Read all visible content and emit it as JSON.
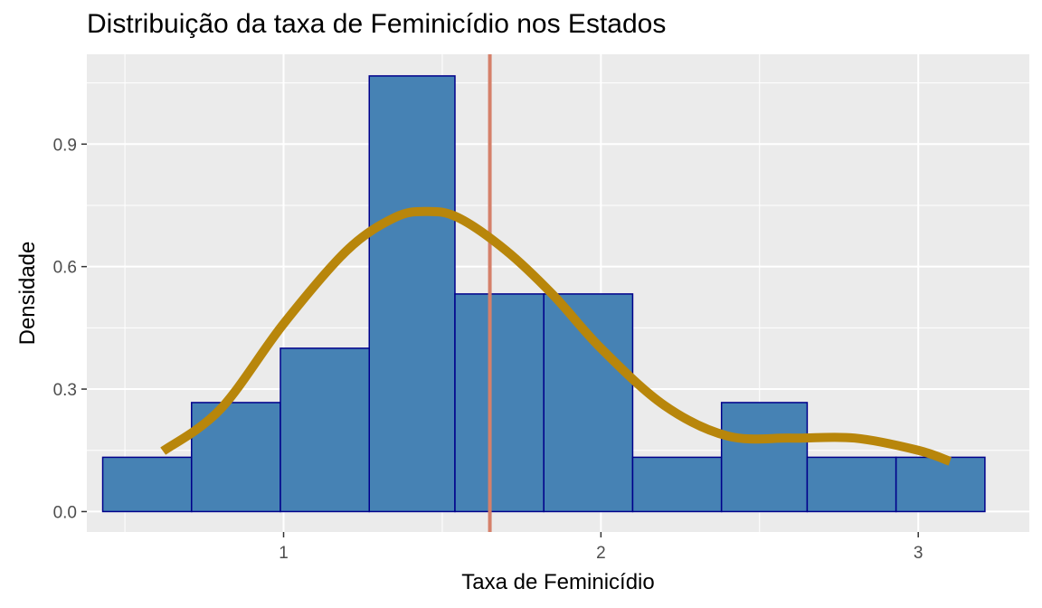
{
  "chart_data": {
    "type": "histogram",
    "title": "Distribuição da taxa de Feminicídio nos Estados",
    "xlabel": "Taxa de Feminicídio",
    "ylabel": "Densidade",
    "xlim": [
      0.38,
      3.35
    ],
    "ylim": [
      -0.05,
      1.12
    ],
    "x_ticks": [
      1,
      2,
      3
    ],
    "y_ticks": [
      0.0,
      0.3,
      0.6,
      0.9
    ],
    "y_tick_labels": [
      "0.0",
      "0.3",
      "0.6",
      "0.9"
    ],
    "grid": true,
    "bins": [
      {
        "x0": 0.43,
        "x1": 0.71,
        "density": 0.133
      },
      {
        "x0": 0.71,
        "x1": 0.99,
        "density": 0.267
      },
      {
        "x0": 0.99,
        "x1": 1.27,
        "density": 0.4
      },
      {
        "x0": 1.27,
        "x1": 1.54,
        "density": 1.067
      },
      {
        "x0": 1.54,
        "x1": 1.82,
        "density": 0.533
      },
      {
        "x0": 1.82,
        "x1": 2.1,
        "density": 0.533
      },
      {
        "x0": 2.1,
        "x1": 2.38,
        "density": 0.133
      },
      {
        "x0": 2.38,
        "x1": 2.65,
        "density": 0.267
      },
      {
        "x0": 2.65,
        "x1": 2.93,
        "density": 0.133
      },
      {
        "x0": 2.93,
        "x1": 3.21,
        "density": 0.133
      }
    ],
    "density_curve": {
      "x": [
        0.62,
        0.8,
        1.0,
        1.2,
        1.35,
        1.45,
        1.55,
        1.7,
        1.85,
        2.0,
        2.2,
        2.4,
        2.6,
        2.8,
        3.0,
        3.1
      ],
      "y": [
        0.148,
        0.25,
        0.46,
        0.64,
        0.72,
        0.735,
        0.72,
        0.64,
        0.53,
        0.4,
        0.26,
        0.185,
        0.18,
        0.18,
        0.15,
        0.123
      ]
    },
    "mean_line_x": 1.65,
    "colors": {
      "panel_background": "#ebebeb",
      "gridline": "#ffffff",
      "bar_fill": "#4682b4",
      "bar_outline": "#00008b",
      "density_line": "#b8860b",
      "mean_line": "#d5806a"
    }
  }
}
